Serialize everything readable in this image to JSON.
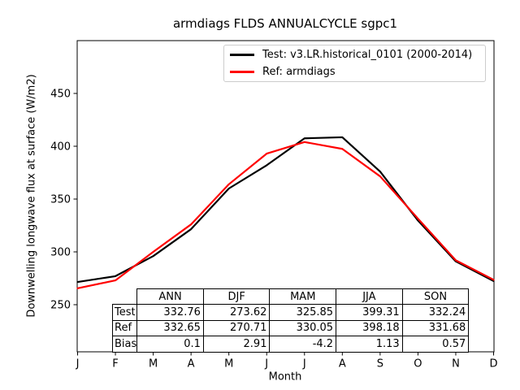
{
  "figure": {
    "title": "armdiags FLDS ANNUALCYCLE sgpc1",
    "xlabel": "Month",
    "ylabel": "Downwelling longwave flux at surface (W/m2)"
  },
  "chart_data": {
    "type": "line",
    "title": "armdiags FLDS ANNUALCYCLE sgpc1",
    "xlabel": "Month",
    "ylabel": "Downwelling longwave flux at surface (W/m2)",
    "x_tick_labels": [
      "J",
      "F",
      "M",
      "A",
      "M",
      "J",
      "J",
      "A",
      "S",
      "O",
      "N",
      "D"
    ],
    "y_ticks": [
      250,
      300,
      350,
      400,
      450
    ],
    "ylim": [
      205,
      500
    ],
    "grid": false,
    "legend_position": "upper right",
    "series": [
      {
        "name": "Test: v3.LR.historical_0101 (2000-2014)",
        "color": "#000000",
        "values": [
          271.5,
          277.0,
          296.0,
          321.5,
          360.0,
          382.0,
          407.5,
          408.5,
          376.0,
          329.7,
          291.0,
          272.4
        ]
      },
      {
        "name": "Ref: armdiags",
        "color": "#ff0000",
        "values": [
          265.5,
          273.0,
          300.0,
          326.0,
          364.0,
          393.0,
          404.0,
          397.5,
          371.5,
          331.5,
          292.0,
          273.6
        ]
      }
    ],
    "table": {
      "columns": [
        "ANN",
        "DJF",
        "MAM",
        "JJA",
        "SON"
      ],
      "rows": [
        {
          "label": "Test",
          "values": [
            "332.76",
            "273.62",
            "325.85",
            "399.31",
            "332.24"
          ]
        },
        {
          "label": "Ref",
          "values": [
            "332.65",
            "270.71",
            "330.05",
            "398.18",
            "331.68"
          ]
        },
        {
          "label": "Bias",
          "values": [
            "0.1",
            "2.91",
            "-4.2",
            "1.13",
            "0.57"
          ]
        }
      ]
    }
  }
}
